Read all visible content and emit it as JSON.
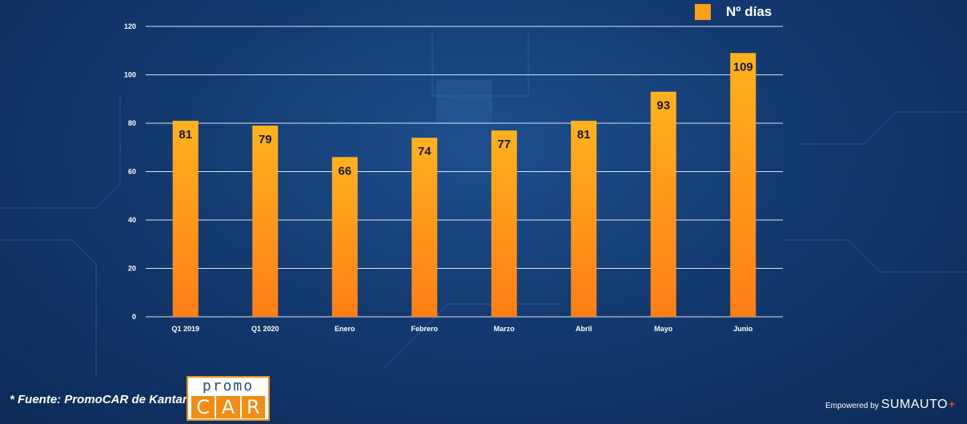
{
  "chart_data": {
    "type": "bar",
    "categories": [
      "Q1 2019",
      "Q1 2020",
      "Enero",
      "Febrero",
      "Marzo",
      "Abril",
      "Mayo",
      "Junio"
    ],
    "series": [
      {
        "name": "Nº días",
        "values": [
          81,
          79,
          66,
          74,
          77,
          81,
          93,
          109
        ]
      }
    ],
    "data_labels": [
      "81",
      "79",
      "66",
      "74",
      "77",
      "81",
      "93",
      "109"
    ],
    "yticks": [
      0,
      20,
      40,
      60,
      80,
      100,
      120
    ],
    "ylim": [
      0,
      120
    ],
    "grid": true,
    "legend_position": "top-right",
    "bar_color_top": "#ffb21e",
    "bar_color_bottom": "#ff7e16",
    "label_color": "#1a1a1a",
    "axis_text_color": "#ffffff",
    "grid_color": "#ffffff"
  },
  "legend": {
    "label": "Nº días",
    "color": "#ff9e1c"
  },
  "footer": {
    "source": "* Fuente: PromoCAR de Kantar.",
    "logo_top": "promo",
    "logo_letters": [
      "C",
      "A",
      "R"
    ],
    "brand_small": "Empowered by",
    "brand_name": "SUMAUTO",
    "brand_mark": "+"
  },
  "background": {
    "color": "#133a70",
    "image": "circuit-board"
  }
}
